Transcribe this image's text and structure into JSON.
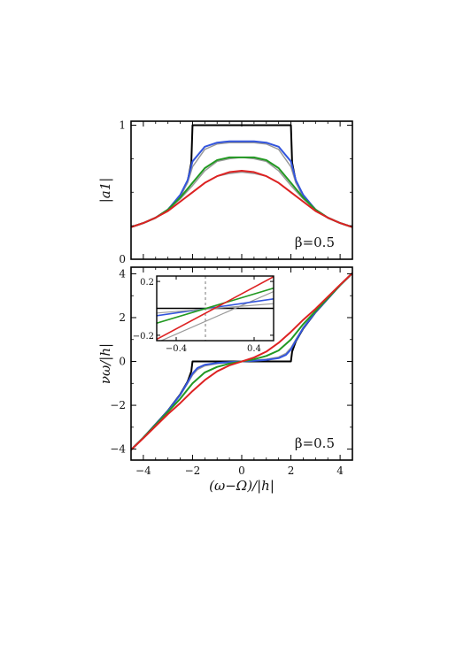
{
  "chart_data": [
    {
      "id": "top",
      "type": "line",
      "ylabel": "|a1|",
      "annotation": "β=0.5",
      "xlim": [
        -4.5,
        4.5
      ],
      "ylim": [
        0,
        1.03
      ],
      "xticks": [
        -4,
        -2,
        0,
        2,
        4
      ],
      "yticks": [
        0,
        1
      ],
      "ytick_labels": [
        "0",
        "1"
      ],
      "show_x_tick_labels": false,
      "series": [
        {
          "color": "#000000",
          "x": [
            -4.5,
            -4,
            -3.5,
            -3,
            -2.5,
            -2.2,
            -2.05,
            -2,
            2,
            2.05,
            2.2,
            2.5,
            3,
            3.5,
            4,
            4.5
          ],
          "y": [
            0.24,
            0.27,
            0.31,
            0.37,
            0.47,
            0.58,
            0.72,
            1.0,
            1.0,
            0.72,
            0.58,
            0.47,
            0.37,
            0.31,
            0.27,
            0.24
          ]
        },
        {
          "color": "#999999",
          "x": [
            -4.5,
            -4,
            -3.5,
            -3,
            -2.5,
            -2.2,
            -2,
            -1.5,
            -1,
            -0.5,
            0,
            0.5,
            1,
            1.5,
            2,
            2.2,
            2.5,
            3,
            3.5,
            4,
            4.5
          ],
          "y": [
            0.24,
            0.27,
            0.31,
            0.37,
            0.47,
            0.57,
            0.69,
            0.82,
            0.86,
            0.87,
            0.87,
            0.87,
            0.86,
            0.82,
            0.69,
            0.57,
            0.47,
            0.37,
            0.31,
            0.27,
            0.24
          ]
        },
        {
          "color": "#3355dd",
          "x": [
            -4.5,
            -4,
            -3.5,
            -3,
            -2.5,
            -2.2,
            -2,
            -1.5,
            -1,
            -0.5,
            0,
            0.5,
            1,
            1.5,
            2,
            2.2,
            2.5,
            3,
            3.5,
            4,
            4.5
          ],
          "y": [
            0.24,
            0.27,
            0.31,
            0.37,
            0.48,
            0.59,
            0.73,
            0.84,
            0.87,
            0.88,
            0.88,
            0.88,
            0.87,
            0.84,
            0.73,
            0.59,
            0.48,
            0.37,
            0.31,
            0.27,
            0.24
          ]
        },
        {
          "color": "#999999",
          "x": [
            -4.5,
            -4,
            -3.5,
            -3,
            -2.5,
            -2,
            -1.5,
            -1,
            -0.5,
            0,
            0.5,
            1,
            1.5,
            2,
            2.5,
            3,
            3.5,
            4,
            4.5
          ],
          "y": [
            0.24,
            0.27,
            0.31,
            0.37,
            0.45,
            0.55,
            0.66,
            0.73,
            0.75,
            0.76,
            0.75,
            0.73,
            0.66,
            0.55,
            0.45,
            0.37,
            0.31,
            0.27,
            0.24
          ]
        },
        {
          "color": "#229922",
          "x": [
            -4.5,
            -4,
            -3.5,
            -3,
            -2.5,
            -2,
            -1.5,
            -1,
            -0.5,
            0,
            0.5,
            1,
            1.5,
            2,
            2.5,
            3,
            3.5,
            4,
            4.5
          ],
          "y": [
            0.24,
            0.27,
            0.31,
            0.37,
            0.46,
            0.57,
            0.68,
            0.74,
            0.76,
            0.76,
            0.76,
            0.74,
            0.68,
            0.57,
            0.46,
            0.37,
            0.31,
            0.27,
            0.24
          ]
        },
        {
          "color": "#999999",
          "x": [
            -4.5,
            -4,
            -3.5,
            -3,
            -2.5,
            -2,
            -1.5,
            -1,
            -0.5,
            0,
            0.5,
            1,
            1.5,
            2,
            2.5,
            3,
            3.5,
            4,
            4.5
          ],
          "y": [
            0.24,
            0.27,
            0.31,
            0.36,
            0.43,
            0.5,
            0.57,
            0.62,
            0.64,
            0.65,
            0.64,
            0.62,
            0.57,
            0.5,
            0.43,
            0.36,
            0.31,
            0.27,
            0.24
          ]
        },
        {
          "color": "#dd2222",
          "x": [
            -4.5,
            -4,
            -3.5,
            -3,
            -2.5,
            -2,
            -1.5,
            -1,
            -0.5,
            0,
            0.5,
            1,
            1.5,
            2,
            2.5,
            3,
            3.5,
            4,
            4.5
          ],
          "y": [
            0.24,
            0.27,
            0.31,
            0.36,
            0.43,
            0.5,
            0.57,
            0.62,
            0.65,
            0.66,
            0.65,
            0.62,
            0.57,
            0.5,
            0.43,
            0.36,
            0.31,
            0.27,
            0.24
          ]
        }
      ]
    },
    {
      "id": "bottom",
      "type": "line",
      "xlabel": "(ω−Ω)/|h|",
      "ylabel": "νω/|h|",
      "annotation": "β=0.5",
      "xlim": [
        -4.5,
        4.5
      ],
      "ylim": [
        -4.5,
        4.3
      ],
      "xticks": [
        -4,
        -2,
        0,
        2,
        4
      ],
      "yticks": [
        -4,
        -2,
        0,
        2,
        4
      ],
      "series": [
        {
          "color": "#000000",
          "x": [
            -4.5,
            -4,
            -3,
            -2.5,
            -2.2,
            -2.05,
            -2,
            2,
            2.05,
            2.2,
            2.5,
            3,
            4,
            4.5
          ],
          "y": [
            -4.03,
            -3.48,
            -2.24,
            -1.5,
            -0.92,
            -0.45,
            0,
            0,
            0.45,
            0.92,
            1.5,
            2.24,
            3.48,
            4.03
          ]
        },
        {
          "color": "#999999",
          "x": [
            -4.5,
            -4,
            -3,
            -2.5,
            -2.2,
            -2,
            -1.8,
            -1.5,
            -1,
            -0.5,
            0,
            0.5,
            1,
            1.5,
            1.8,
            2,
            2.2,
            2.5,
            3,
            4,
            4.5
          ],
          "y": [
            -4.03,
            -3.48,
            -2.25,
            -1.55,
            -1.0,
            -0.62,
            -0.37,
            -0.2,
            -0.1,
            -0.05,
            0,
            0.05,
            0.1,
            0.2,
            0.37,
            0.62,
            1.0,
            1.55,
            2.25,
            3.48,
            4.03
          ]
        },
        {
          "color": "#3355dd",
          "x": [
            -4.5,
            -4,
            -3,
            -2.5,
            -2.2,
            -2,
            -1.8,
            -1.5,
            -1,
            -0.5,
            0,
            0.5,
            1,
            1.5,
            1.8,
            2,
            2.2,
            2.5,
            3,
            4,
            4.5
          ],
          "y": [
            -4.03,
            -3.48,
            -2.25,
            -1.52,
            -0.95,
            -0.55,
            -0.3,
            -0.15,
            -0.07,
            -0.03,
            0,
            0.03,
            0.07,
            0.15,
            0.3,
            0.55,
            0.95,
            1.52,
            2.25,
            3.48,
            4.03
          ]
        },
        {
          "color": "#229922",
          "x": [
            -4.5,
            -4,
            -3,
            -2.5,
            -2,
            -1.5,
            -1,
            -0.5,
            0,
            0.5,
            1,
            1.5,
            2,
            2.5,
            3,
            4,
            4.5
          ],
          "y": [
            -4.03,
            -3.48,
            -2.3,
            -1.7,
            -1.0,
            -0.5,
            -0.25,
            -0.1,
            0,
            0.1,
            0.25,
            0.5,
            1.0,
            1.7,
            2.3,
            3.48,
            4.03
          ]
        },
        {
          "color": "#dd2222",
          "x": [
            -4.5,
            -4,
            -3,
            -2.5,
            -2,
            -1.5,
            -1,
            -0.5,
            0,
            0.5,
            1,
            1.5,
            2,
            2.5,
            3,
            4,
            4.5
          ],
          "y": [
            -4.03,
            -3.5,
            -2.4,
            -1.9,
            -1.35,
            -0.85,
            -0.45,
            -0.18,
            0,
            0.18,
            0.45,
            0.85,
            1.35,
            1.9,
            2.4,
            3.5,
            4.03
          ]
        }
      ]
    },
    {
      "id": "inset",
      "type": "line",
      "xlim": [
        -0.6,
        0.6
      ],
      "ylim": [
        -0.24,
        0.24
      ],
      "xticks": [
        -0.4,
        0.4
      ],
      "xtick_labels": [
        "−0.4",
        "0.4"
      ],
      "yticks": [
        -0.2,
        0.2
      ],
      "ytick_labels": [
        "−0.2",
        "0.2"
      ],
      "vline_x": -0.1,
      "series": [
        {
          "color": "#000000",
          "x": [
            -0.6,
            0.6
          ],
          "y": [
            0,
            0
          ]
        },
        {
          "color": "#999999",
          "x": [
            -0.6,
            0.6
          ],
          "y": [
            -0.255,
            0.125
          ]
        },
        {
          "color": "#3355dd",
          "x": [
            -0.6,
            0.6
          ],
          "y": [
            -0.055,
            0.07
          ]
        },
        {
          "color": "#999999",
          "x": [
            -0.6,
            0.6
          ],
          "y": [
            -0.035,
            0.035
          ]
        },
        {
          "color": "#229922",
          "x": [
            -0.6,
            0.6
          ],
          "y": [
            -0.11,
            0.15
          ]
        },
        {
          "color": "#dd2222",
          "x": [
            -0.6,
            0.6
          ],
          "y": [
            -0.23,
            0.235
          ]
        }
      ]
    }
  ]
}
